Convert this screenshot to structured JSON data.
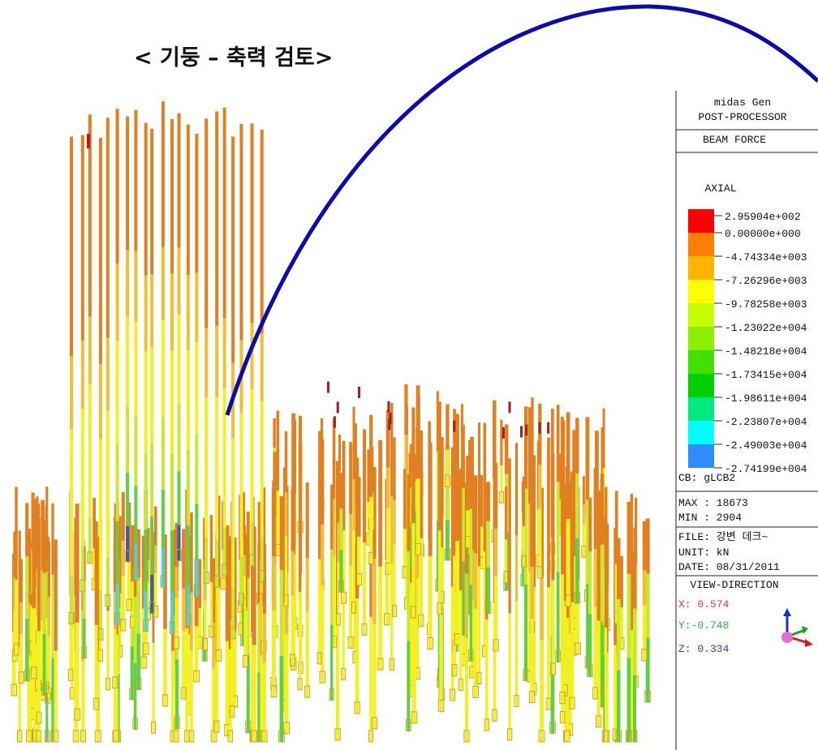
{
  "header": {
    "title": "< 기둥 – 축력 검토>"
  },
  "legend": {
    "program": "midas Gen",
    "module": "POST-PROCESSOR",
    "result": "BEAM FORCE",
    "component": "AXIAL",
    "levels": [
      "2.95904e+002",
      "0.00000e+000",
      "-4.74334e+003",
      "-7.26296e+003",
      "-9.78258e+003",
      "-1.23022e+004",
      "-1.48218e+004",
      "-1.73415e+004",
      "-1.98611e+004",
      "-2.23807e+004",
      "-2.49003e+004",
      "-2.74199e+004"
    ],
    "combination": "CB: gLCB2",
    "max": "MAX : 18673",
    "min": "MIN : 2904",
    "file": "FILE: 강변 데크~",
    "unit": "UNIT: kN",
    "date": "DATE: 08/31/2011",
    "view_title": "VIEW-DIRECTION",
    "view": [
      "X: 0.574",
      "Y:-0.748",
      "Z: 0.334"
    ]
  }
}
